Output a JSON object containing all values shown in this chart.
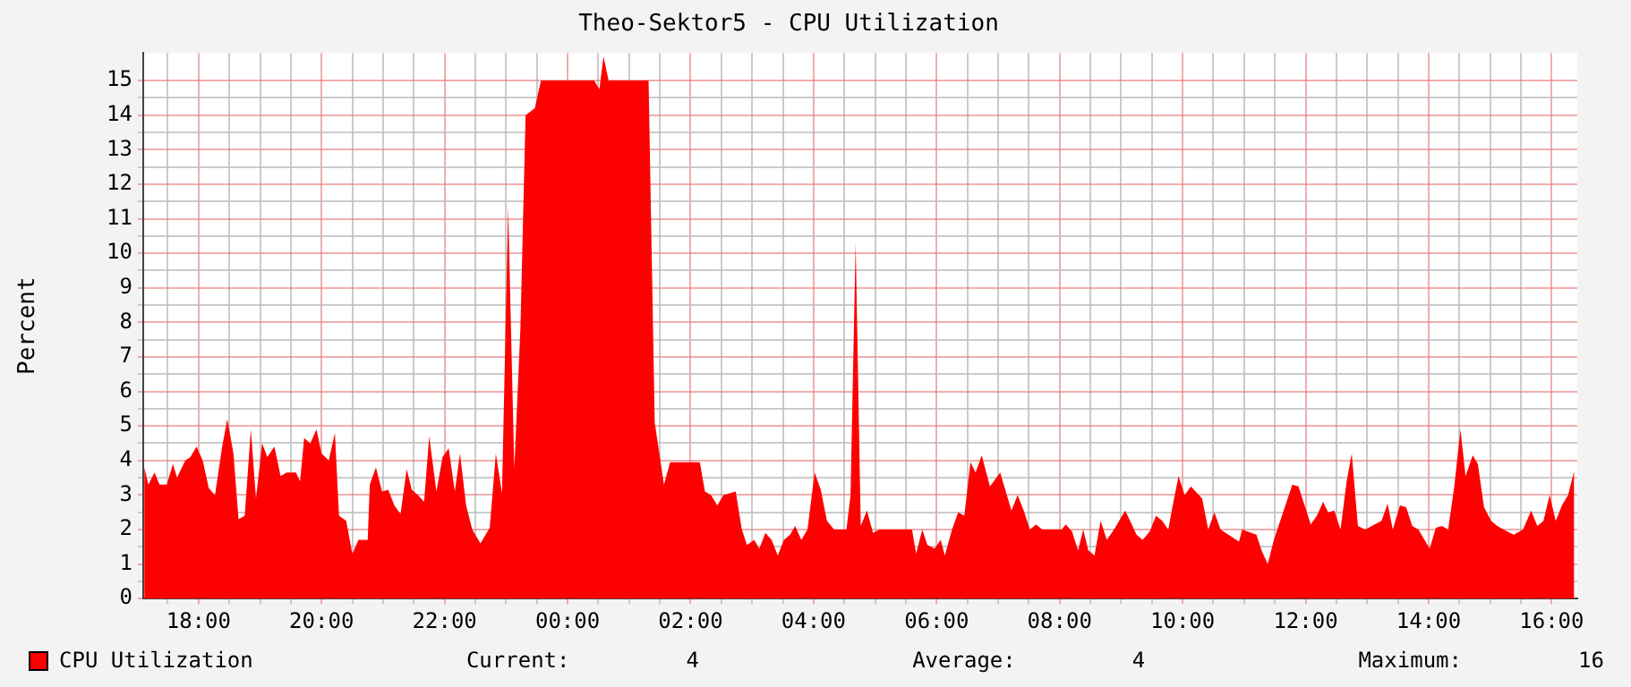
{
  "chart_data": {
    "type": "area",
    "title": "Theo-Sektor5 - CPU Utilization",
    "ylabel": "Percent",
    "xlim": [
      "2000-01-01T17:06",
      "2000-01-02T16:25"
    ],
    "ylim": [
      0,
      15.8
    ],
    "xticks": [
      {
        "value": "2000-01-01T17:30",
        "label": null
      },
      {
        "value": "2000-01-01T18:00",
        "label": "18:00"
      },
      {
        "value": "2000-01-01T18:30",
        "label": null
      },
      {
        "value": "2000-01-01T19:00",
        "label": null
      },
      {
        "value": "2000-01-01T19:30",
        "label": null
      },
      {
        "value": "2000-01-01T20:00",
        "label": "20:00"
      },
      {
        "value": "2000-01-01T20:30",
        "label": null
      },
      {
        "value": "2000-01-01T21:00",
        "label": null
      },
      {
        "value": "2000-01-01T21:30",
        "label": null
      },
      {
        "value": "2000-01-01T22:00",
        "label": "22:00"
      },
      {
        "value": "2000-01-01T22:30",
        "label": null
      },
      {
        "value": "2000-01-01T23:00",
        "label": null
      },
      {
        "value": "2000-01-01T23:30",
        "label": null
      },
      {
        "value": "2000-01-02T00:00",
        "label": "00:00"
      },
      {
        "value": "2000-01-02T00:30",
        "label": null
      },
      {
        "value": "2000-01-02T01:00",
        "label": null
      },
      {
        "value": "2000-01-02T01:30",
        "label": null
      },
      {
        "value": "2000-01-02T02:00",
        "label": "02:00"
      },
      {
        "value": "2000-01-02T02:30",
        "label": null
      },
      {
        "value": "2000-01-02T03:00",
        "label": null
      },
      {
        "value": "2000-01-02T03:30",
        "label": null
      },
      {
        "value": "2000-01-02T04:00",
        "label": "04:00"
      },
      {
        "value": "2000-01-02T04:30",
        "label": null
      },
      {
        "value": "2000-01-02T05:00",
        "label": null
      },
      {
        "value": "2000-01-02T05:30",
        "label": null
      },
      {
        "value": "2000-01-02T06:00",
        "label": "06:00"
      },
      {
        "value": "2000-01-02T06:30",
        "label": null
      },
      {
        "value": "2000-01-02T07:00",
        "label": null
      },
      {
        "value": "2000-01-02T07:30",
        "label": null
      },
      {
        "value": "2000-01-02T08:00",
        "label": "08:00"
      },
      {
        "value": "2000-01-02T08:30",
        "label": null
      },
      {
        "value": "2000-01-02T09:00",
        "label": null
      },
      {
        "value": "2000-01-02T09:30",
        "label": null
      },
      {
        "value": "2000-01-02T10:00",
        "label": "10:00"
      },
      {
        "value": "2000-01-02T10:30",
        "label": null
      },
      {
        "value": "2000-01-02T11:00",
        "label": null
      },
      {
        "value": "2000-01-02T11:30",
        "label": null
      },
      {
        "value": "2000-01-02T12:00",
        "label": "12:00"
      },
      {
        "value": "2000-01-02T12:30",
        "label": null
      },
      {
        "value": "2000-01-02T13:00",
        "label": null
      },
      {
        "value": "2000-01-02T13:30",
        "label": null
      },
      {
        "value": "2000-01-02T14:00",
        "label": "14:00"
      },
      {
        "value": "2000-01-02T14:30",
        "label": null
      },
      {
        "value": "2000-01-02T15:00",
        "label": null
      },
      {
        "value": "2000-01-02T15:30",
        "label": null
      },
      {
        "value": "2000-01-02T16:00",
        "label": "16:00"
      }
    ],
    "yticks": [
      0,
      {
        "value": 0.5,
        "label": null
      },
      1,
      {
        "value": 1.5,
        "label": null
      },
      2,
      {
        "value": 2.5,
        "label": null
      },
      3,
      {
        "value": 3.5,
        "label": null
      },
      4,
      {
        "value": 4.5,
        "label": null
      },
      5,
      {
        "value": 5.5,
        "label": null
      },
      6,
      {
        "value": 6.5,
        "label": null
      },
      7,
      {
        "value": 7.5,
        "label": null
      },
      8,
      {
        "value": 8.5,
        "label": null
      },
      9,
      {
        "value": 9.5,
        "label": null
      },
      10,
      {
        "value": 10.5,
        "label": null
      },
      11,
      {
        "value": 11.5,
        "label": null
      },
      12,
      {
        "value": 12.5,
        "label": null
      },
      13,
      {
        "value": 13.5,
        "label": null
      },
      14,
      {
        "value": 14.5,
        "label": null
      },
      15
    ],
    "grid": true,
    "legend": "bottom left",
    "annotations": [
      "Current:         4",
      "Average:         4",
      "Maximum:         16"
    ],
    "series": [
      {
        "name": "CPU Utilization",
        "color": "#ff0000",
        "x": [
          "2000-01-01T17:07",
          "2000-01-01T17:11",
          "2000-01-01T17:17",
          "2000-01-01T17:22",
          "2000-01-01T17:29",
          "2000-01-01T17:35",
          "2000-01-01T17:39",
          "2000-01-01T17:47",
          "2000-01-01T17:52",
          "2000-01-01T17:58",
          "2000-01-01T18:04",
          "2000-01-01T18:10",
          "2000-01-01T18:16",
          "2000-01-01T18:23",
          "2000-01-01T18:28",
          "2000-01-01T18:34",
          "2000-01-01T18:39",
          "2000-01-01T18:45",
          "2000-01-01T18:51",
          "2000-01-01T18:56",
          "2000-01-01T19:02",
          "2000-01-01T19:07",
          "2000-01-01T19:14",
          "2000-01-01T19:20",
          "2000-01-01T19:26",
          "2000-01-01T19:35",
          "2000-01-01T19:39",
          "2000-01-01T19:43",
          "2000-01-01T19:49",
          "2000-01-01T19:55",
          "2000-01-01T20:00",
          "2000-01-01T20:07",
          "2000-01-01T20:13",
          "2000-01-01T20:17",
          "2000-01-01T20:24",
          "2000-01-01T20:30",
          "2000-01-01T20:36",
          "2000-01-01T20:45",
          "2000-01-01T20:47",
          "2000-01-01T20:53",
          "2000-01-01T20:59",
          "2000-01-01T21:05",
          "2000-01-01T21:11",
          "2000-01-01T21:17",
          "2000-01-01T21:23",
          "2000-01-01T21:28",
          "2000-01-01T21:34",
          "2000-01-01T21:40",
          "2000-01-01T21:45",
          "2000-01-01T21:52",
          "2000-01-01T21:58",
          "2000-01-01T22:04",
          "2000-01-01T22:10",
          "2000-01-01T22:15",
          "2000-01-01T22:21",
          "2000-01-01T22:27",
          "2000-01-01T22:35",
          "2000-01-01T22:44",
          "2000-01-01T22:50",
          "2000-01-01T22:56",
          "2000-01-01T23:02",
          "2000-01-01T23:08",
          "2000-01-01T23:14",
          "2000-01-01T23:19",
          "2000-01-01T23:28",
          "2000-01-01T23:34",
          "2000-01-02T00:26",
          "2000-01-02T00:31",
          "2000-01-02T00:35",
          "2000-01-02T00:40",
          "2000-01-02T01:19",
          "2000-01-02T01:25",
          "2000-01-02T01:34",
          "2000-01-02T01:40",
          "2000-01-02T02:09",
          "2000-01-02T02:14",
          "2000-01-02T02:20",
          "2000-01-02T02:26",
          "2000-01-02T02:32",
          "2000-01-02T02:44",
          "2000-01-02T02:50",
          "2000-01-02T02:55",
          "2000-01-02T03:02",
          "2000-01-02T03:07",
          "2000-01-02T03:13",
          "2000-01-02T03:19",
          "2000-01-02T03:25",
          "2000-01-02T03:31",
          "2000-01-02T03:37",
          "2000-01-02T03:42",
          "2000-01-02T03:48",
          "2000-01-02T03:54",
          "2000-01-02T04:01",
          "2000-01-02T04:07",
          "2000-01-02T04:13",
          "2000-01-02T04:20",
          "2000-01-02T04:32",
          "2000-01-02T04:36",
          "2000-01-02T04:41",
          "2000-01-02T04:46",
          "2000-01-02T04:52",
          "2000-01-02T04:58",
          "2000-01-02T05:04",
          "2000-01-02T05:36",
          "2000-01-02T05:40",
          "2000-01-02T05:46",
          "2000-01-02T05:51",
          "2000-01-02T05:58",
          "2000-01-02T06:04",
          "2000-01-02T06:08",
          "2000-01-02T06:15",
          "2000-01-02T06:21",
          "2000-01-02T06:27",
          "2000-01-02T06:33",
          "2000-01-02T06:38",
          "2000-01-02T06:44",
          "2000-01-02T06:52",
          "2000-01-02T07:02",
          "2000-01-02T07:13",
          "2000-01-02T07:19",
          "2000-01-02T07:25",
          "2000-01-02T07:31",
          "2000-01-02T07:37",
          "2000-01-02T07:43",
          "2000-01-02T08:02",
          "2000-01-02T08:06",
          "2000-01-02T08:12",
          "2000-01-02T08:18",
          "2000-01-02T08:23",
          "2000-01-02T08:28",
          "2000-01-02T08:34",
          "2000-01-02T08:40",
          "2000-01-02T08:46",
          "2000-01-02T08:53",
          "2000-01-02T09:04",
          "2000-01-02T09:15",
          "2000-01-02T09:21",
          "2000-01-02T09:28",
          "2000-01-02T09:34",
          "2000-01-02T09:40",
          "2000-01-02T09:46",
          "2000-01-02T09:50",
          "2000-01-02T09:56",
          "2000-01-02T10:02",
          "2000-01-02T10:08",
          "2000-01-02T10:19",
          "2000-01-02T10:25",
          "2000-01-02T10:31",
          "2000-01-02T10:37",
          "2000-01-02T10:55",
          "2000-01-02T10:58",
          "2000-01-02T11:12",
          "2000-01-02T11:17",
          "2000-01-02T11:23",
          "2000-01-02T11:29",
          "2000-01-02T11:47",
          "2000-01-02T11:53",
          "2000-01-02T11:59",
          "2000-01-02T12:05",
          "2000-01-02T12:11",
          "2000-01-02T12:17",
          "2000-01-02T12:22",
          "2000-01-02T12:28",
          "2000-01-02T12:34",
          "2000-01-02T12:40",
          "2000-01-02T12:45",
          "2000-01-02T12:51",
          "2000-01-02T12:58",
          "2000-01-02T13:14",
          "2000-01-02T13:20",
          "2000-01-02T13:25",
          "2000-01-02T13:32",
          "2000-01-02T13:38",
          "2000-01-02T13:44",
          "2000-01-02T13:50",
          "2000-01-02T14:01",
          "2000-01-02T14:07",
          "2000-01-02T14:13",
          "2000-01-02T14:19",
          "2000-01-02T14:25",
          "2000-01-02T14:31",
          "2000-01-02T14:36",
          "2000-01-02T14:43",
          "2000-01-02T14:48",
          "2000-01-02T14:54",
          "2000-01-02T15:01",
          "2000-01-02T15:07",
          "2000-01-02T15:13",
          "2000-01-02T15:23",
          "2000-01-02T15:32",
          "2000-01-02T15:40",
          "2000-01-02T15:46",
          "2000-01-02T15:52",
          "2000-01-02T15:58",
          "2000-01-02T16:04",
          "2000-01-02T16:10",
          "2000-01-02T16:16",
          "2000-01-02T16:22"
        ],
        "values": [
          3.8,
          3.3,
          3.65,
          3.3,
          3.3,
          3.9,
          3.5,
          4.0,
          4.1,
          4.4,
          4.0,
          3.2,
          3.0,
          4.4,
          5.2,
          4.2,
          2.3,
          2.4,
          4.9,
          2.9,
          4.5,
          4.1,
          4.4,
          3.55,
          3.65,
          3.65,
          3.4,
          4.65,
          4.5,
          4.9,
          4.2,
          4.0,
          4.8,
          2.4,
          2.25,
          1.3,
          1.7,
          1.7,
          3.3,
          3.8,
          3.1,
          3.15,
          2.7,
          2.45,
          3.75,
          3.15,
          3.0,
          2.8,
          4.7,
          3.1,
          4.1,
          4.35,
          3.1,
          4.2,
          2.7,
          2.0,
          1.6,
          2.05,
          4.2,
          3.05,
          11.35,
          3.75,
          7.85,
          14.0,
          14.2,
          15.0,
          15.0,
          14.75,
          15.7,
          15.0,
          15.0,
          5.1,
          3.3,
          3.95,
          3.95,
          3.1,
          3.0,
          2.7,
          3.0,
          3.1,
          2.0,
          1.55,
          1.7,
          1.45,
          1.9,
          1.7,
          1.25,
          1.7,
          1.85,
          2.1,
          1.7,
          2.0,
          3.65,
          3.15,
          2.25,
          2.0,
          2.0,
          3.0,
          10.3,
          2.1,
          2.55,
          1.9,
          2.0,
          2.0,
          1.3,
          2.0,
          1.55,
          1.45,
          1.7,
          1.25,
          2.0,
          2.5,
          2.4,
          3.95,
          3.65,
          4.15,
          3.25,
          3.65,
          2.55,
          3.0,
          2.55,
          2.0,
          2.15,
          2.0,
          2.0,
          2.15,
          1.95,
          1.4,
          2.0,
          1.4,
          1.25,
          2.25,
          1.7,
          2.0,
          2.55,
          1.85,
          1.7,
          1.95,
          2.4,
          2.25,
          2.0,
          2.65,
          3.55,
          3.0,
          3.25,
          2.9,
          2.0,
          2.5,
          2.0,
          1.65,
          2.0,
          1.85,
          1.4,
          1.0,
          1.7,
          3.3,
          3.25,
          2.7,
          2.15,
          2.4,
          2.8,
          2.5,
          2.55,
          2.0,
          3.4,
          4.2,
          2.1,
          2.0,
          2.25,
          2.75,
          2.0,
          2.7,
          2.65,
          2.1,
          2.0,
          1.45,
          2.05,
          2.1,
          2.0,
          3.25,
          4.9,
          3.55,
          4.15,
          3.9,
          2.65,
          2.25,
          2.1,
          2.0,
          1.85,
          2.0,
          2.55,
          2.1,
          2.25,
          3.0,
          2.25,
          2.7,
          3.0,
          3.7
        ]
      }
    ]
  }
}
